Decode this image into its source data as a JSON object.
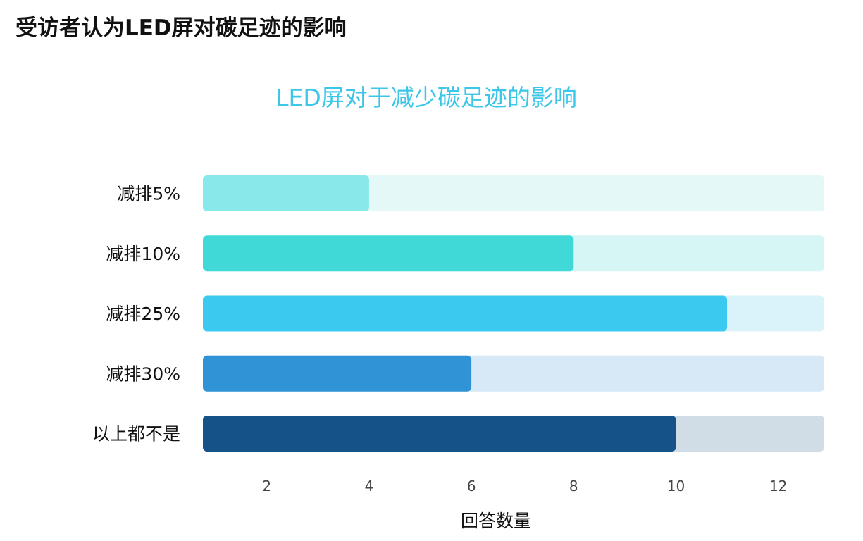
{
  "page": {
    "title": "受访者认为LED屏对碳足迹的影响"
  },
  "chart_data": {
    "type": "bar",
    "orientation": "horizontal",
    "title": "LED屏对于减少碳足迹的影响",
    "xlabel": "回答数量",
    "ylabel": "",
    "xlim": [
      0.75,
      12.9
    ],
    "xticks": [
      2,
      4,
      6,
      8,
      10,
      12
    ],
    "categories": [
      "减排5%",
      "减排10%",
      "减排25%",
      "减排30%",
      "以上都不是"
    ],
    "values": [
      4,
      8,
      11,
      6,
      10
    ],
    "colors": [
      "#88e8ea",
      "#40d9d8",
      "#3bc9ef",
      "#2f93d6",
      "#145288"
    ],
    "track_colors": [
      "#e4f8f8",
      "#d6f6f5",
      "#daf3fb",
      "#d7e8f6",
      "#d0dce6"
    ],
    "grid": false,
    "legend": "none"
  }
}
